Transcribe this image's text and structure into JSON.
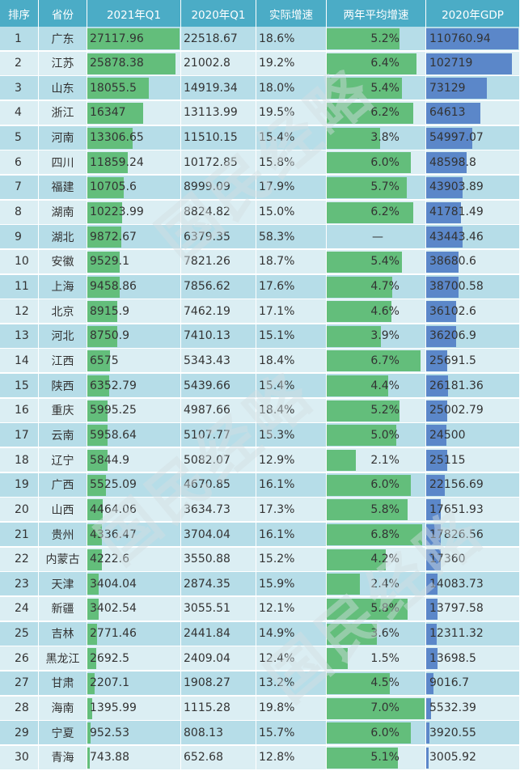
{
  "header": {
    "rank": "排序",
    "province": "省份",
    "q1_2021": "2021年Q1",
    "q1_2020": "2020年Q1",
    "growth": "实际增速",
    "avg_growth": "两年平均增速",
    "gdp_2020": "2020年GDP"
  },
  "colors": {
    "header": "#4bacc6",
    "row_odd": "#b6dde8",
    "row_even": "#dbeef3",
    "bar_green": "#63be7b",
    "bar_blue": "#5b87c9"
  },
  "watermark": [
    "国民经略",
    "国民经略",
    "国民经略"
  ],
  "rows": [
    {
      "rank": "1",
      "province": "广东",
      "q1_2021": "27117.96",
      "q1_2020": "22518.67",
      "growth": "18.6%",
      "avg": "5.2%",
      "gdp": "110760.94"
    },
    {
      "rank": "2",
      "province": "江苏",
      "q1_2021": "25878.38",
      "q1_2020": "21002.8",
      "growth": "19.2%",
      "avg": "6.4%",
      "gdp": "102719"
    },
    {
      "rank": "3",
      "province": "山东",
      "q1_2021": "18055.5",
      "q1_2020": "14919.34",
      "growth": "18.0%",
      "avg": "5.4%",
      "gdp": "73129"
    },
    {
      "rank": "4",
      "province": "浙江",
      "q1_2021": "16347",
      "q1_2020": "13113.99",
      "growth": "19.5%",
      "avg": "6.2%",
      "gdp": "64613"
    },
    {
      "rank": "5",
      "province": "河南",
      "q1_2021": "13306.65",
      "q1_2020": "11510.15",
      "growth": "15.4%",
      "avg": "3.8%",
      "gdp": "54997.07"
    },
    {
      "rank": "6",
      "province": "四川",
      "q1_2021": "11859.24",
      "q1_2020": "10172.85",
      "growth": "15.8%",
      "avg": "6.0%",
      "gdp": "48598.8"
    },
    {
      "rank": "7",
      "province": "福建",
      "q1_2021": "10705.6",
      "q1_2020": "8999.09",
      "growth": "17.9%",
      "avg": "5.7%",
      "gdp": "43903.89"
    },
    {
      "rank": "8",
      "province": "湖南",
      "q1_2021": "10223.99",
      "q1_2020": "8824.82",
      "growth": "15.0%",
      "avg": "6.2%",
      "gdp": "41781.49"
    },
    {
      "rank": "9",
      "province": "湖北",
      "q1_2021": "9872.67",
      "q1_2020": "6379.35",
      "growth": "58.3%",
      "avg": "—",
      "gdp": "43443.46"
    },
    {
      "rank": "10",
      "province": "安徽",
      "q1_2021": "9529.1",
      "q1_2020": "7821.26",
      "growth": "18.7%",
      "avg": "5.4%",
      "gdp": "38680.6"
    },
    {
      "rank": "11",
      "province": "上海",
      "q1_2021": "9458.86",
      "q1_2020": "7856.62",
      "growth": "17.6%",
      "avg": "4.7%",
      "gdp": "38700.58"
    },
    {
      "rank": "12",
      "province": "北京",
      "q1_2021": "8915.9",
      "q1_2020": "7462.19",
      "growth": "17.1%",
      "avg": "4.6%",
      "gdp": "36102.6"
    },
    {
      "rank": "13",
      "province": "河北",
      "q1_2021": "8750.9",
      "q1_2020": "7410.13",
      "growth": "15.1%",
      "avg": "3.9%",
      "gdp": "36206.9"
    },
    {
      "rank": "14",
      "province": "江西",
      "q1_2021": "6575",
      "q1_2020": "5343.43",
      "growth": "18.4%",
      "avg": "6.7%",
      "gdp": "25691.5"
    },
    {
      "rank": "15",
      "province": "陕西",
      "q1_2021": "6352.79",
      "q1_2020": "5439.66",
      "growth": "15.4%",
      "avg": "4.4%",
      "gdp": "26181.36"
    },
    {
      "rank": "16",
      "province": "重庆",
      "q1_2021": "5995.25",
      "q1_2020": "4987.66",
      "growth": "18.4%",
      "avg": "5.2%",
      "gdp": "25002.79"
    },
    {
      "rank": "17",
      "province": "云南",
      "q1_2021": "5958.64",
      "q1_2020": "5107.77",
      "growth": "15.3%",
      "avg": "5.0%",
      "gdp": "24500"
    },
    {
      "rank": "18",
      "province": "辽宁",
      "q1_2021": "5844.9",
      "q1_2020": "5082.07",
      "growth": "12.9%",
      "avg": "2.1%",
      "gdp": "25115"
    },
    {
      "rank": "19",
      "province": "广西",
      "q1_2021": "5525.09",
      "q1_2020": "4670.85",
      "growth": "16.1%",
      "avg": "6.0%",
      "gdp": "22156.69"
    },
    {
      "rank": "20",
      "province": "山西",
      "q1_2021": "4464.06",
      "q1_2020": "3634.73",
      "growth": "17.3%",
      "avg": "5.8%",
      "gdp": "17651.93"
    },
    {
      "rank": "21",
      "province": "贵州",
      "q1_2021": "4336.47",
      "q1_2020": "3704.04",
      "growth": "16.1%",
      "avg": "6.8%",
      "gdp": "17826.56"
    },
    {
      "rank": "22",
      "province": "内蒙古",
      "q1_2021": "4222.6",
      "q1_2020": "3550.88",
      "growth": "15.2%",
      "avg": "4.2%",
      "gdp": "17360"
    },
    {
      "rank": "23",
      "province": "天津",
      "q1_2021": "3404.04",
      "q1_2020": "2874.35",
      "growth": "15.9%",
      "avg": "2.4%",
      "gdp": "14083.73"
    },
    {
      "rank": "24",
      "province": "新疆",
      "q1_2021": "3402.54",
      "q1_2020": "3055.51",
      "growth": "12.1%",
      "avg": "5.8%",
      "gdp": "13797.58"
    },
    {
      "rank": "25",
      "province": "吉林",
      "q1_2021": "2771.46",
      "q1_2020": "2441.84",
      "growth": "14.9%",
      "avg": "3.6%",
      "gdp": "12311.32"
    },
    {
      "rank": "26",
      "province": "黑龙江",
      "q1_2021": "2692.5",
      "q1_2020": "2409.04",
      "growth": "12.4%",
      "avg": "1.5%",
      "gdp": "13698.5"
    },
    {
      "rank": "27",
      "province": "甘肃",
      "q1_2021": "2207.1",
      "q1_2020": "1908.27",
      "growth": "13.2%",
      "avg": "4.5%",
      "gdp": "9016.7"
    },
    {
      "rank": "28",
      "province": "海南",
      "q1_2021": "1395.99",
      "q1_2020": "1115.28",
      "growth": "19.8%",
      "avg": "7.0%",
      "gdp": "5532.39"
    },
    {
      "rank": "29",
      "province": "宁夏",
      "q1_2021": "952.53",
      "q1_2020": "808.13",
      "growth": "15.7%",
      "avg": "6.0%",
      "gdp": "3920.55"
    },
    {
      "rank": "30",
      "province": "青海",
      "q1_2021": "743.88",
      "q1_2020": "652.68",
      "growth": "12.8%",
      "avg": "5.1%",
      "gdp": "3005.92"
    }
  ]
}
